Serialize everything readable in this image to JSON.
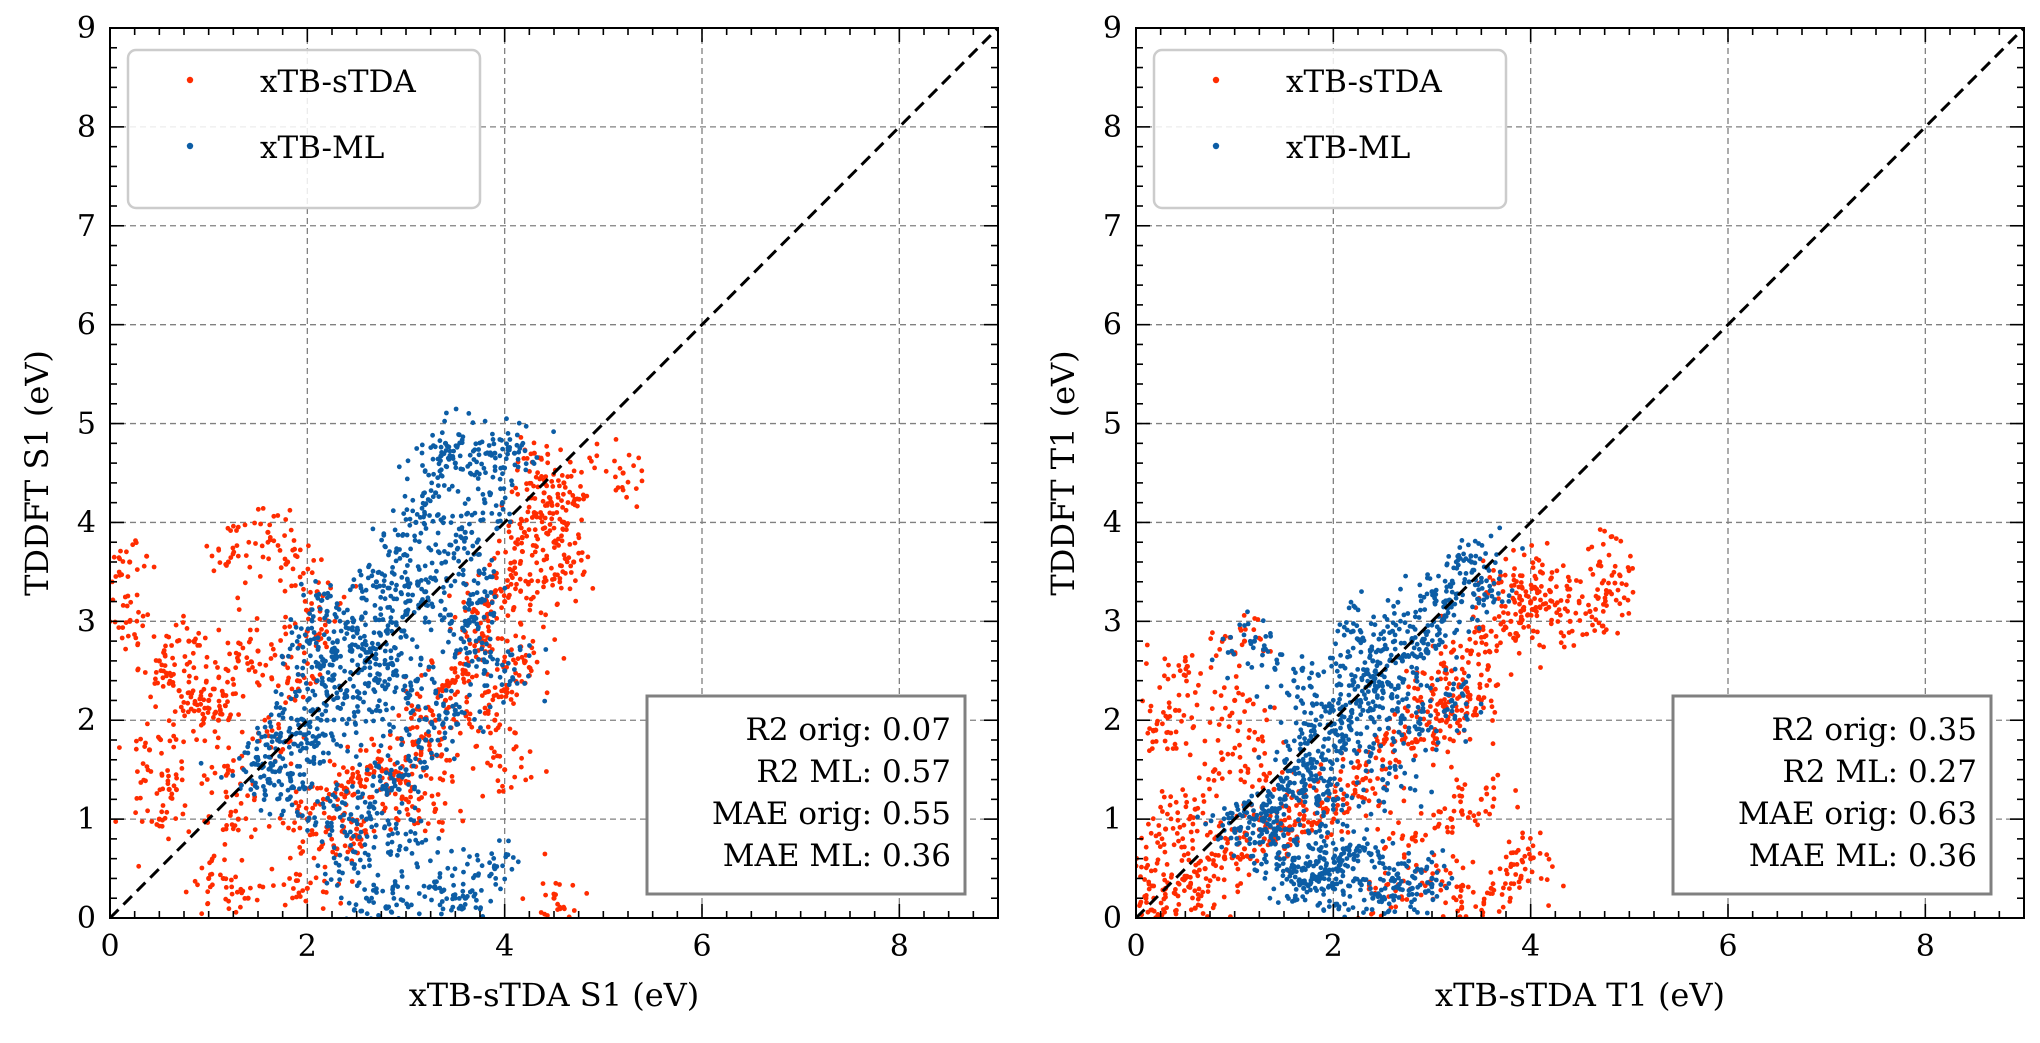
{
  "chart_data": [
    {
      "type": "scatter",
      "xlabel": "xTB-sTDA S1 (eV)",
      "ylabel": "TDDFT S1 (eV)",
      "xlim": [
        0,
        9
      ],
      "ylim": [
        0,
        9
      ],
      "xticks": [
        "0",
        "2",
        "4",
        "6",
        "8"
      ],
      "yticks": [
        "0",
        "1",
        "2",
        "3",
        "4",
        "5",
        "6",
        "7",
        "8",
        "9"
      ],
      "grid": true,
      "legend_position": "top-left",
      "reference_line": "y = x (dashed)",
      "series": [
        {
          "name": "xTB-sTDA",
          "color": "#ff2c00",
          "points": [
            [
              3.4,
              2.2
            ],
            [
              3.6,
              2.5
            ],
            [
              3.8,
              2.8
            ],
            [
              4.0,
              3.2
            ],
            [
              4.1,
              3.6
            ],
            [
              4.2,
              3.9
            ],
            [
              4.3,
              4.1
            ],
            [
              4.4,
              4.3
            ],
            [
              4.5,
              3.8
            ],
            [
              4.6,
              4.0
            ],
            [
              3.9,
              3.3
            ],
            [
              3.7,
              2.9
            ],
            [
              3.5,
              2.4
            ],
            [
              3.3,
              2.0
            ],
            [
              3.2,
              1.8
            ],
            [
              3.0,
              1.6
            ],
            [
              2.8,
              1.5
            ],
            [
              2.6,
              1.4
            ],
            [
              2.4,
              1.3
            ],
            [
              2.2,
              1.2
            ],
            [
              4.0,
              2.3
            ],
            [
              4.2,
              2.6
            ],
            [
              4.4,
              3.4
            ],
            [
              4.6,
              4.4
            ],
            [
              4.7,
              3.6
            ],
            [
              4.3,
              4.7
            ],
            [
              5.2,
              4.5
            ],
            [
              4.5,
              0.2
            ],
            [
              4.0,
              1.5
            ],
            [
              0.2,
              3.6
            ],
            [
              0.2,
              3.0
            ],
            [
              0.5,
              2.6
            ],
            [
              0.7,
              2.3
            ],
            [
              0.9,
              2.1
            ],
            [
              1.0,
              2.2
            ],
            [
              1.1,
              2.0
            ],
            [
              0.8,
              2.8
            ],
            [
              0.4,
              1.7
            ],
            [
              0.6,
              1.3
            ],
            [
              0.5,
              1.0
            ],
            [
              1.2,
              1.5
            ],
            [
              1.3,
              1.0
            ],
            [
              1.0,
              0.4
            ],
            [
              1.4,
              0.2
            ],
            [
              1.6,
              3.9
            ],
            [
              1.8,
              3.6
            ],
            [
              1.5,
              2.7
            ],
            [
              1.9,
              2.4
            ],
            [
              2.0,
              2.9
            ],
            [
              2.1,
              3.3
            ],
            [
              2.0,
              0.3
            ],
            [
              2.5,
              0.9
            ],
            [
              2.3,
              0.7
            ],
            [
              1.3,
              2.6
            ],
            [
              1.2,
              3.6
            ],
            [
              1.7,
              1.8
            ],
            [
              2.0,
              1.0
            ],
            [
              3.0,
              1.2
            ],
            [
              3.3,
              1.1
            ],
            [
              3.9,
              2.0
            ]
          ]
        },
        {
          "name": "xTB-ML",
          "color": "#0c5da5",
          "points": [
            [
              2.0,
              1.6
            ],
            [
              2.2,
              2.0
            ],
            [
              2.4,
              2.3
            ],
            [
              2.6,
              2.6
            ],
            [
              2.8,
              2.9
            ],
            [
              3.0,
              3.1
            ],
            [
              3.2,
              3.3
            ],
            [
              3.4,
              3.6
            ],
            [
              3.6,
              3.9
            ],
            [
              3.8,
              4.2
            ],
            [
              3.5,
              4.6
            ],
            [
              3.9,
              4.7
            ],
            [
              4.1,
              4.7
            ],
            [
              2.5,
              2.9
            ],
            [
              2.7,
              3.4
            ],
            [
              2.9,
              3.7
            ],
            [
              3.1,
              4.0
            ],
            [
              3.3,
              4.3
            ],
            [
              2.3,
              2.7
            ],
            [
              2.1,
              2.4
            ],
            [
              1.9,
              2.0
            ],
            [
              1.7,
              1.8
            ],
            [
              1.6,
              1.4
            ],
            [
              1.8,
              1.2
            ],
            [
              2.3,
              1.1
            ],
            [
              2.6,
              1.0
            ],
            [
              2.8,
              1.3
            ],
            [
              3.0,
              1.5
            ],
            [
              3.2,
              1.8
            ],
            [
              3.5,
              2.1
            ],
            [
              3.7,
              2.7
            ],
            [
              3.8,
              3.3
            ],
            [
              2.4,
              0.6
            ],
            [
              2.6,
              0.2
            ],
            [
              2.8,
              0.1
            ],
            [
              3.3,
              0.3
            ],
            [
              3.6,
              0.2
            ],
            [
              3.9,
              0.5
            ],
            [
              3.0,
              0.7
            ],
            [
              2.0,
              2.8
            ],
            [
              2.2,
              3.1
            ],
            [
              1.5,
              1.6
            ],
            [
              3.4,
              4.8
            ],
            [
              4.0,
              2.5
            ],
            [
              3.1,
              2.4
            ],
            [
              2.7,
              2.1
            ],
            [
              3.6,
              3.0
            ],
            [
              2.9,
              2.5
            ]
          ]
        }
      ],
      "stats": {
        "r2_orig": "R2 orig: 0.07",
        "r2_ml": "R2 ML: 0.57",
        "mae_orig": "MAE orig: 0.55",
        "mae_ml": "MAE ML: 0.36"
      }
    },
    {
      "type": "scatter",
      "xlabel": "xTB-sTDA T1 (eV)",
      "ylabel": "TDDFT T1 (eV)",
      "xlim": [
        0,
        9
      ],
      "ylim": [
        0,
        9
      ],
      "xticks": [
        "0",
        "2",
        "4",
        "6",
        "8"
      ],
      "yticks": [
        "0",
        "1",
        "2",
        "3",
        "4",
        "5",
        "6",
        "7",
        "8",
        "9"
      ],
      "grid": true,
      "legend_position": "top-left",
      "reference_line": "y = x (dashed)",
      "series": [
        {
          "name": "xTB-sTDA",
          "color": "#ff2c00",
          "points": [
            [
              3.0,
              2.3
            ],
            [
              3.2,
              2.5
            ],
            [
              3.4,
              2.7
            ],
            [
              3.6,
              2.9
            ],
            [
              3.8,
              3.0
            ],
            [
              3.9,
              3.1
            ],
            [
              4.0,
              3.2
            ],
            [
              4.2,
              3.3
            ],
            [
              4.4,
              3.0
            ],
            [
              4.6,
              3.1
            ],
            [
              4.8,
              3.3
            ],
            [
              4.7,
              3.6
            ],
            [
              3.5,
              2.2
            ],
            [
              3.3,
              2.1
            ],
            [
              3.1,
              2.0
            ],
            [
              2.9,
              1.9
            ],
            [
              2.7,
              1.8
            ],
            [
              2.5,
              1.6
            ],
            [
              2.3,
              1.4
            ],
            [
              2.1,
              1.2
            ],
            [
              1.9,
              1.1
            ],
            [
              1.7,
              1.0
            ],
            [
              1.5,
              0.9
            ],
            [
              1.3,
              0.8
            ],
            [
              1.1,
              0.7
            ],
            [
              0.9,
              0.6
            ],
            [
              0.7,
              0.5
            ],
            [
              0.5,
              0.4
            ],
            [
              0.3,
              0.3
            ],
            [
              0.1,
              0.2
            ],
            [
              0.1,
              0.6
            ],
            [
              0.3,
              0.9
            ],
            [
              0.6,
              1.1
            ],
            [
              0.8,
              1.5
            ],
            [
              1.1,
              2.8
            ],
            [
              0.5,
              2.6
            ],
            [
              0.2,
              1.9
            ],
            [
              0.4,
              2.1
            ],
            [
              1.0,
              2.2
            ],
            [
              1.2,
              1.7
            ],
            [
              1.4,
              1.3
            ],
            [
              2.5,
              0.2
            ],
            [
              3.0,
              0.4
            ],
            [
              3.3,
              0.1
            ],
            [
              3.6,
              0.3
            ],
            [
              3.9,
              0.4
            ],
            [
              4.0,
              0.6
            ],
            [
              2.8,
              0.8
            ],
            [
              3.2,
              1.0
            ],
            [
              3.5,
              1.2
            ],
            [
              3.7,
              3.4
            ],
            [
              4.1,
              3.5
            ],
            [
              0.2,
              0.0
            ],
            [
              0.6,
              0.1
            ]
          ]
        },
        {
          "name": "xTB-ML",
          "color": "#0c5da5",
          "points": [
            [
              1.3,
              1.0
            ],
            [
              1.5,
              1.2
            ],
            [
              1.7,
              1.4
            ],
            [
              1.9,
              1.6
            ],
            [
              2.1,
              1.8
            ],
            [
              2.3,
              2.1
            ],
            [
              2.5,
              2.3
            ],
            [
              2.7,
              2.6
            ],
            [
              2.9,
              2.8
            ],
            [
              3.1,
              3.0
            ],
            [
              3.3,
              3.2
            ],
            [
              3.5,
              3.4
            ],
            [
              3.4,
              3.6
            ],
            [
              3.0,
              3.3
            ],
            [
              2.6,
              2.9
            ],
            [
              2.4,
              2.6
            ],
            [
              2.2,
              2.4
            ],
            [
              2.0,
              2.1
            ],
            [
              1.8,
              1.9
            ],
            [
              1.6,
              1.5
            ],
            [
              1.4,
              0.9
            ],
            [
              1.2,
              1.0
            ],
            [
              1.0,
              0.9
            ],
            [
              1.6,
              0.5
            ],
            [
              1.8,
              0.4
            ],
            [
              2.0,
              0.3
            ],
            [
              2.2,
              0.5
            ],
            [
              2.4,
              0.2
            ],
            [
              2.6,
              0.4
            ],
            [
              2.8,
              0.3
            ],
            [
              3.0,
              0.4
            ],
            [
              1.9,
              0.6
            ],
            [
              2.1,
              0.7
            ],
            [
              1.7,
              0.3
            ],
            [
              1.5,
              0.6
            ],
            [
              2.9,
              1.9
            ],
            [
              3.2,
              2.2
            ],
            [
              2.6,
              2.1
            ],
            [
              2.2,
              2.9
            ],
            [
              1.2,
              2.8
            ],
            [
              1.6,
              2.4
            ],
            [
              2.5,
              1.4
            ],
            [
              2.0,
              1.2
            ]
          ]
        }
      ],
      "stats": {
        "r2_orig": "R2 orig: 0.35",
        "r2_ml": "R2 ML: 0.27",
        "mae_orig": "MAE orig: 0.63",
        "mae_ml": "MAE ML: 0.36"
      }
    }
  ]
}
